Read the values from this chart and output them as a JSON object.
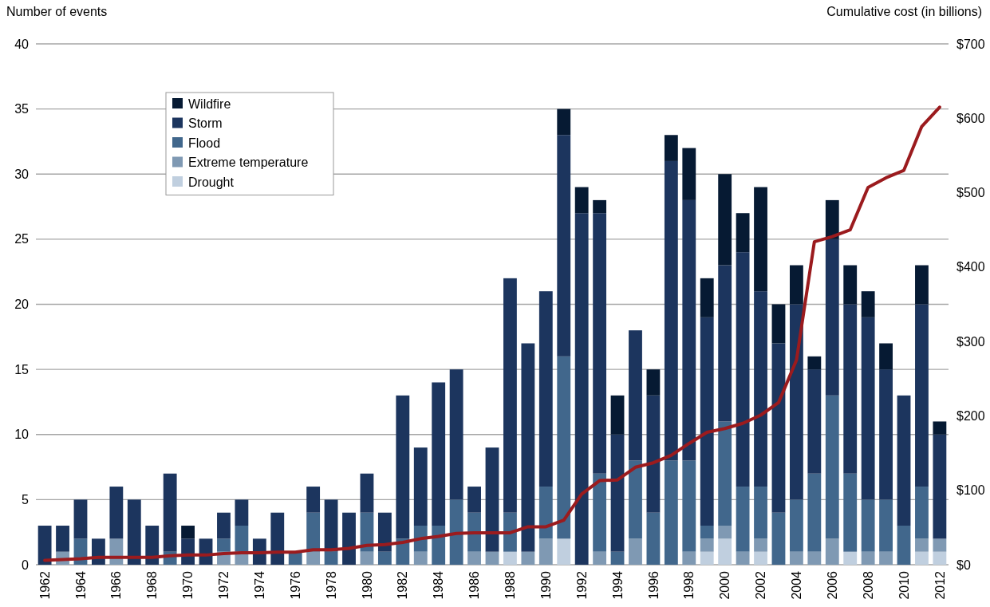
{
  "chart_data": {
    "type": "bar",
    "stacked": true,
    "ylabel": "Number of events",
    "y2label": "Cumulative cost (in billions)",
    "categories": [
      "1962",
      null,
      "1964",
      null,
      "1966",
      null,
      "1968",
      null,
      "1970",
      null,
      "1972",
      null,
      "1974",
      null,
      "1976",
      null,
      "1978",
      null,
      "1980",
      null,
      "1982",
      null,
      "1984",
      null,
      "1986",
      null,
      "1988",
      null,
      "1990",
      null,
      "1992",
      null,
      "1994",
      null,
      "1996",
      null,
      "1998",
      null,
      "2000",
      null,
      "2002",
      null,
      "2004",
      null,
      "2006",
      null,
      "2008",
      null,
      "2010",
      null,
      "2012"
    ],
    "series": [
      {
        "name": "Drought",
        "color": "#c0cfdf",
        "values": [
          0,
          0,
          0,
          0,
          0,
          0,
          0,
          0,
          0,
          0,
          0,
          0,
          0,
          0,
          0,
          0,
          0,
          0,
          0,
          0,
          0,
          0,
          0,
          0,
          0,
          0,
          1,
          0,
          0,
          2,
          0,
          0,
          0,
          0,
          0,
          0,
          0,
          1,
          2,
          0,
          1,
          0,
          0,
          0,
          0,
          1,
          0,
          0,
          0,
          1,
          1
        ]
      },
      {
        "name": "Extreme temperature",
        "color": "#7f99b3",
        "values": [
          0,
          1,
          0,
          0,
          2,
          0,
          0,
          0,
          0,
          0,
          1,
          1,
          0,
          0,
          0,
          1,
          0,
          0,
          1,
          0,
          0,
          1,
          0,
          0,
          1,
          1,
          0,
          1,
          2,
          0,
          0,
          1,
          0,
          2,
          0,
          0,
          1,
          1,
          1,
          1,
          1,
          0,
          1,
          1,
          2,
          0,
          1,
          1,
          0,
          1,
          1
        ]
      },
      {
        "name": "Flood",
        "color": "#41678c",
        "values": [
          0,
          0,
          2,
          0,
          0,
          0,
          0,
          1,
          0,
          0,
          1,
          2,
          0,
          0,
          1,
          3,
          1,
          0,
          3,
          1,
          2,
          2,
          3,
          5,
          3,
          0,
          3,
          0,
          4,
          14,
          0,
          6,
          1,
          6,
          4,
          8,
          7,
          1,
          8,
          5,
          4,
          4,
          4,
          6,
          11,
          6,
          4,
          4,
          3,
          4,
          0
        ]
      },
      {
        "name": "Storm",
        "color": "#1c355e",
        "values": [
          3,
          2,
          3,
          2,
          4,
          5,
          3,
          6,
          2,
          2,
          2,
          2,
          2,
          4,
          0,
          2,
          4,
          4,
          3,
          3,
          11,
          6,
          11,
          10,
          2,
          8,
          18,
          16,
          15,
          17,
          27,
          20,
          9,
          10,
          9,
          23,
          20,
          16,
          12,
          18,
          15,
          13,
          15,
          8,
          12,
          13,
          14,
          10,
          10,
          14,
          8
        ]
      },
      {
        "name": "Wildfire",
        "color": "#061a33",
        "values": [
          0,
          0,
          0,
          0,
          0,
          0,
          0,
          0,
          1,
          0,
          0,
          0,
          0,
          0,
          0,
          0,
          0,
          0,
          0,
          0,
          0,
          0,
          0,
          0,
          0,
          0,
          0,
          0,
          0,
          2,
          2,
          1,
          3,
          0,
          2,
          2,
          4,
          3,
          7,
          3,
          8,
          3,
          3,
          1,
          3,
          3,
          2,
          2,
          0,
          3,
          1
        ]
      },
      {
        "type": "line",
        "axis": "y2",
        "color": "#9b1b1e",
        "values": [
          6,
          7,
          8,
          10,
          10,
          10,
          10,
          12,
          13,
          13,
          15,
          16,
          16,
          17,
          17,
          20,
          20,
          22,
          26,
          27,
          30,
          35,
          38,
          42,
          43,
          43,
          43,
          51,
          51,
          60,
          95,
          113,
          114,
          131,
          137,
          147,
          163,
          178,
          183,
          190,
          201,
          218,
          275,
          434,
          441,
          450,
          507,
          520,
          530,
          589,
          615
        ]
      }
    ],
    "ylim": [
      0,
      40
    ],
    "yticks": [
      0,
      5,
      10,
      15,
      20,
      25,
      30,
      35,
      40
    ],
    "y2lim": [
      0,
      700
    ],
    "y2ticks": [
      {
        "value": 0,
        "label": "$0"
      },
      {
        "value": 100,
        "label": "$100"
      },
      {
        "value": 200,
        "label": "$200"
      },
      {
        "value": 300,
        "label": "$300"
      },
      {
        "value": 400,
        "label": "$400"
      },
      {
        "value": 500,
        "label": "$500"
      },
      {
        "value": 600,
        "label": "$600"
      },
      {
        "value": 700,
        "label": "$700"
      }
    ],
    "grid": "y",
    "legend": "top left",
    "marker": "none",
    "line_style": "solid"
  }
}
